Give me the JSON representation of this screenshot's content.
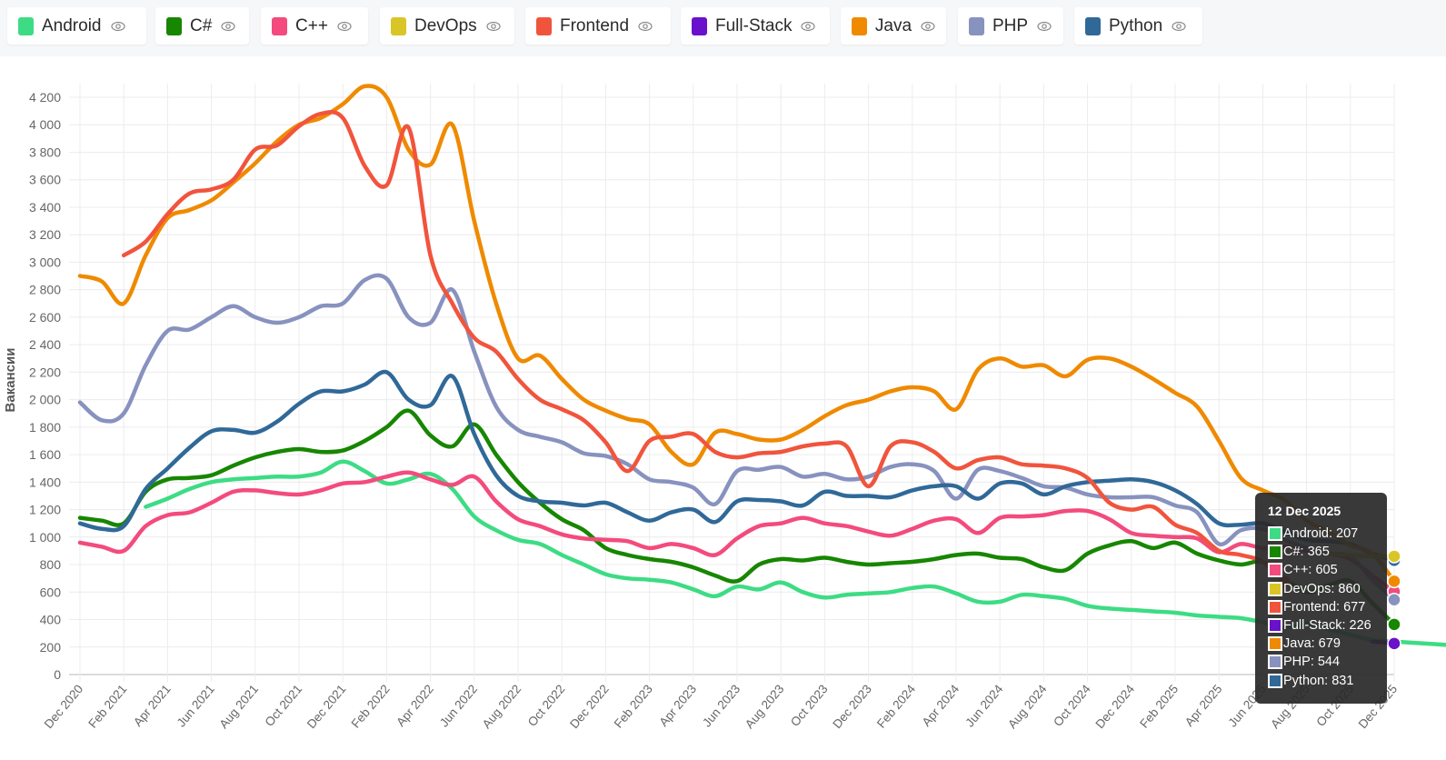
{
  "legend": {
    "items": [
      {
        "label": "Android",
        "color": "#3ddc84",
        "icon": "eye-icon"
      },
      {
        "label": "C#",
        "color": "#178600",
        "icon": "eye-icon"
      },
      {
        "label": "C++",
        "color": "#f34b7d",
        "icon": "eye-icon"
      },
      {
        "label": "DevOps",
        "color": "#d9c526",
        "icon": "eye-icon"
      },
      {
        "label": "Frontend",
        "color": "#f1543d",
        "icon": "eye-icon"
      },
      {
        "label": "Full-Stack",
        "color": "#6a11cb",
        "icon": "eye-icon"
      },
      {
        "label": "Java",
        "color": "#ef8a00",
        "icon": "eye-icon"
      },
      {
        "label": "PHP",
        "color": "#8892bf",
        "icon": "eye-icon"
      },
      {
        "label": "Python",
        "color": "#306998",
        "icon": "eye-icon"
      }
    ]
  },
  "tooltip": {
    "title": "12 Dec 2025",
    "rows": [
      {
        "label": "Android: 207",
        "color": "#3ddc84"
      },
      {
        "label": "C#: 365",
        "color": "#178600"
      },
      {
        "label": "C++: 605",
        "color": "#f34b7d"
      },
      {
        "label": "DevOps: 860",
        "color": "#d9c526"
      },
      {
        "label": "Frontend: 677",
        "color": "#f1543d"
      },
      {
        "label": "Full-Stack: 226",
        "color": "#6a11cb"
      },
      {
        "label": "Java: 679",
        "color": "#ef8a00"
      },
      {
        "label": "PHP: 544",
        "color": "#8892bf"
      },
      {
        "label": "Python: 831",
        "color": "#306998"
      }
    ]
  },
  "chart_data": {
    "type": "line",
    "title": "",
    "xlabel": "",
    "ylabel": "Вакансии",
    "ylim": [
      0,
      4300
    ],
    "yticks": [
      0,
      200,
      400,
      600,
      800,
      1000,
      1200,
      1400,
      1600,
      1800,
      2000,
      2200,
      2400,
      2600,
      2800,
      3000,
      3200,
      3400,
      3600,
      3800,
      4000,
      4200
    ],
    "ytick_labels": [
      "0",
      "200",
      "400",
      "600",
      "800",
      "1 000",
      "1 200",
      "1 400",
      "1 600",
      "1 800",
      "2 000",
      "2 200",
      "2 400",
      "2 600",
      "2 800",
      "3 000",
      "3 200",
      "3 400",
      "3 600",
      "3 800",
      "4 000",
      "4 200"
    ],
    "xtick_labels": [
      "Dec 2020",
      "Feb 2021",
      "Apr 2021",
      "Jun 2021",
      "Aug 2021",
      "Oct 2021",
      "Dec 2021",
      "Feb 2022",
      "Apr 2022",
      "Jun 2022",
      "Aug 2022",
      "Oct 2022",
      "Dec 2022",
      "Feb 2023",
      "Apr 2023",
      "Jun 2023",
      "Aug 2023",
      "Oct 2023",
      "Dec 2023",
      "Feb 2024",
      "Apr 2024",
      "Jun 2024",
      "Aug 2024",
      "Oct 2024",
      "Dec 2024",
      "Feb 2025",
      "Apr 2025",
      "Jun 2025",
      "Aug 2025",
      "Oct 2025",
      "Dec 2025"
    ],
    "x_unit": "months since Dec 2020",
    "x_range": [
      0,
      60
    ],
    "grid": true,
    "legend_position": "top",
    "series": [
      {
        "name": "Android",
        "color": "#3ddc84",
        "x_start": 3,
        "values": [
          1220,
          1280,
          1350,
          1400,
          1420,
          1430,
          1440,
          1440,
          1470,
          1550,
          1480,
          1390,
          1420,
          1460,
          1350,
          1150,
          1050,
          980,
          950,
          870,
          800,
          730,
          700,
          690,
          670,
          620,
          570,
          640,
          620,
          670,
          600,
          560,
          580,
          590,
          600,
          630,
          640,
          590,
          530,
          530,
          580,
          570,
          550,
          500,
          480,
          470,
          460,
          450,
          430,
          420,
          410,
          380,
          340,
          370,
          330,
          290,
          250,
          240,
          230,
          220,
          207
        ]
      },
      {
        "name": "C#",
        "color": "#178600",
        "x_start": 0,
        "values": [
          1140,
          1120,
          1100,
          1330,
          1420,
          1430,
          1450,
          1520,
          1580,
          1620,
          1640,
          1620,
          1630,
          1700,
          1800,
          1920,
          1740,
          1660,
          1820,
          1600,
          1400,
          1250,
          1130,
          1050,
          920,
          870,
          840,
          820,
          780,
          720,
          680,
          800,
          840,
          830,
          850,
          820,
          800,
          810,
          820,
          840,
          870,
          880,
          850,
          840,
          780,
          760,
          880,
          940,
          970,
          920,
          960,
          880,
          830,
          800,
          820,
          700,
          600,
          650,
          680,
          520,
          365
        ]
      },
      {
        "name": "C++",
        "color": "#f34b7d",
        "x_start": 0,
        "values": [
          960,
          930,
          900,
          1080,
          1160,
          1180,
          1250,
          1330,
          1340,
          1320,
          1310,
          1340,
          1390,
          1400,
          1440,
          1470,
          1420,
          1380,
          1440,
          1260,
          1130,
          1080,
          1020,
          990,
          980,
          970,
          920,
          950,
          920,
          870,
          990,
          1080,
          1100,
          1140,
          1100,
          1080,
          1040,
          1010,
          1060,
          1120,
          1130,
          1030,
          1140,
          1150,
          1160,
          1190,
          1190,
          1130,
          1030,
          1010,
          1000,
          990,
          890,
          950,
          920,
          930,
          900,
          880,
          840,
          720,
          605
        ]
      },
      {
        "name": "DevOps",
        "color": "#d9c526",
        "x_start": 57,
        "values": [
          880,
          870,
          860,
          860
        ]
      },
      {
        "name": "Frontend",
        "color": "#f1543d",
        "x_start": 2,
        "values": [
          3050,
          3150,
          3350,
          3500,
          3530,
          3600,
          3820,
          3850,
          3990,
          4080,
          4050,
          3700,
          3560,
          3980,
          3050,
          2700,
          2450,
          2350,
          2150,
          2000,
          1930,
          1850,
          1690,
          1480,
          1700,
          1730,
          1750,
          1620,
          1580,
          1610,
          1620,
          1660,
          1680,
          1660,
          1370,
          1660,
          1690,
          1620,
          1500,
          1560,
          1580,
          1530,
          1520,
          1500,
          1430,
          1250,
          1200,
          1220,
          1090,
          1030,
          900,
          870,
          820,
          677
        ]
      },
      {
        "name": "Full-Stack",
        "color": "#6a11cb",
        "x_start": 59,
        "values": [
          240,
          226
        ]
      },
      {
        "name": "Java",
        "color": "#ef8a00",
        "x_start": 0,
        "values": [
          2900,
          2860,
          2700,
          3050,
          3320,
          3380,
          3450,
          3580,
          3720,
          3880,
          4000,
          4050,
          4150,
          4280,
          4200,
          3820,
          3710,
          4000,
          3300,
          2700,
          2300,
          2320,
          2150,
          2000,
          1920,
          1860,
          1820,
          1620,
          1530,
          1760,
          1750,
          1710,
          1710,
          1780,
          1880,
          1960,
          2000,
          2060,
          2090,
          2060,
          1930,
          2220,
          2300,
          2240,
          2250,
          2170,
          2290,
          2300,
          2240,
          2150,
          2050,
          1950,
          1700,
          1430,
          1340,
          1270,
          1120,
          1040,
          940,
          880,
          679
        ]
      },
      {
        "name": "PHP",
        "color": "#8892bf",
        "x_start": 0,
        "values": [
          1980,
          1850,
          1900,
          2250,
          2500,
          2510,
          2600,
          2680,
          2600,
          2560,
          2600,
          2680,
          2700,
          2870,
          2880,
          2600,
          2560,
          2800,
          2350,
          1950,
          1780,
          1730,
          1690,
          1610,
          1590,
          1530,
          1420,
          1400,
          1360,
          1240,
          1480,
          1490,
          1510,
          1440,
          1460,
          1420,
          1440,
          1510,
          1530,
          1480,
          1280,
          1490,
          1480,
          1430,
          1370,
          1360,
          1310,
          1290,
          1290,
          1290,
          1230,
          1180,
          950,
          1050,
          1060,
          980,
          920,
          880,
          860,
          690,
          544
        ]
      },
      {
        "name": "Python",
        "color": "#306998",
        "x_start": 0,
        "values": [
          1100,
          1060,
          1080,
          1350,
          1500,
          1650,
          1770,
          1780,
          1760,
          1840,
          1970,
          2060,
          2060,
          2110,
          2200,
          2000,
          1960,
          2170,
          1750,
          1450,
          1300,
          1260,
          1250,
          1230,
          1250,
          1180,
          1120,
          1180,
          1200,
          1110,
          1260,
          1270,
          1260,
          1230,
          1330,
          1300,
          1300,
          1290,
          1340,
          1370,
          1370,
          1280,
          1390,
          1390,
          1310,
          1370,
          1400,
          1410,
          1420,
          1400,
          1340,
          1240,
          1100,
          1090,
          1100,
          1040,
          980,
          970,
          950,
          880,
          831
        ]
      }
    ]
  }
}
